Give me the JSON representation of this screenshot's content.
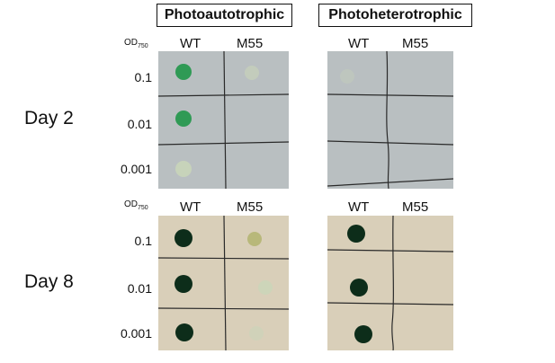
{
  "headers": {
    "left": "Photoautotrophic",
    "right": "Photoheterotrophic"
  },
  "od_label": {
    "main": "OD",
    "sub": "750"
  },
  "columns": {
    "wt": "WT",
    "m55": "M55"
  },
  "days": {
    "top": "Day 2",
    "bottom": "Day 8"
  },
  "dilutions": [
    "0.1",
    "0.01",
    "0.001"
  ],
  "colors": {
    "plate_day2": "#b9bfc1",
    "plate_day8": "#d9cfb9",
    "spot_day2": "#2f9a55",
    "spot_day8": "#0d2d1a",
    "spot_faint": "#c9d6b9"
  }
}
